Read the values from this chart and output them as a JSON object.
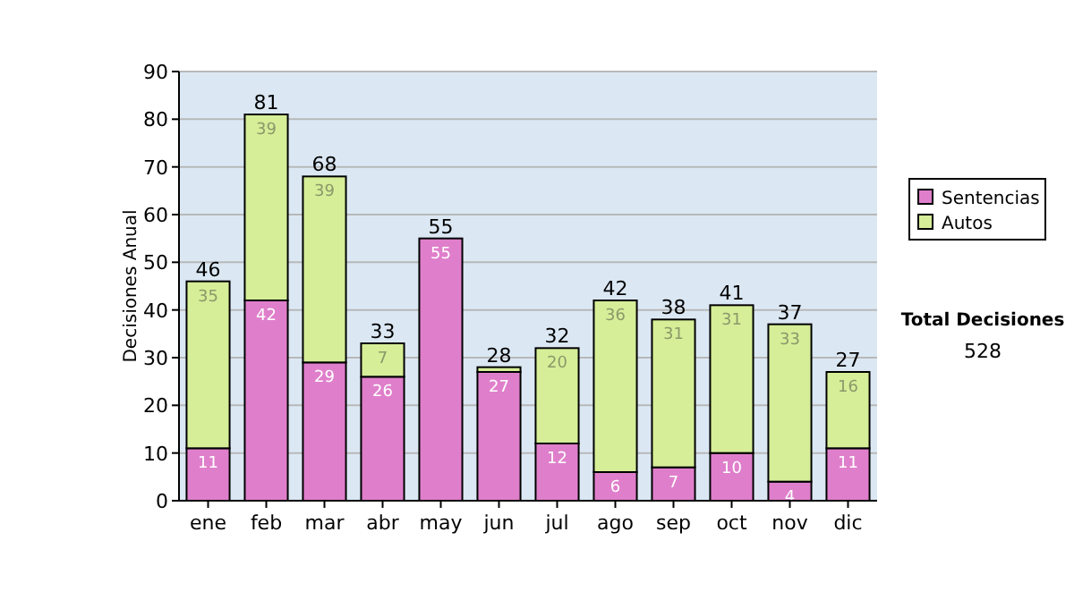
{
  "chart_data": {
    "type": "bar",
    "stacked": true,
    "ylabel": "Decisiones Anual",
    "categories": [
      "ene",
      "feb",
      "mar",
      "abr",
      "may",
      "jun",
      "jul",
      "ago",
      "sep",
      "oct",
      "nov",
      "dic"
    ],
    "series": [
      {
        "name": "Sentencias",
        "color": "#df7fcb",
        "values": [
          11,
          42,
          29,
          26,
          55,
          27,
          12,
          6,
          7,
          10,
          4,
          11
        ],
        "value_labels": [
          "11",
          "42",
          "29",
          "26",
          "55",
          "27",
          "12",
          "6",
          "7",
          "10",
          "4",
          "11"
        ]
      },
      {
        "name": "Autos",
        "color": "#d6ee98",
        "values": [
          35,
          39,
          39,
          7,
          0,
          1,
          20,
          36,
          31,
          31,
          33,
          16
        ],
        "value_labels": [
          "35",
          "39",
          "39",
          "7",
          null,
          null,
          "20",
          "36",
          "31",
          "31",
          "33",
          "16"
        ]
      }
    ],
    "totals": [
      "46",
      "81",
      "68",
      "33",
      "55",
      "28",
      "32",
      "42",
      "38",
      "41",
      "37",
      "27"
    ],
    "ylim": [
      0,
      90
    ],
    "yticks": [
      0,
      10,
      20,
      30,
      40,
      50,
      60,
      70,
      80,
      90
    ],
    "grid": "y",
    "legend": "right",
    "annotations": [
      "Total Decisiones",
      "528"
    ]
  }
}
